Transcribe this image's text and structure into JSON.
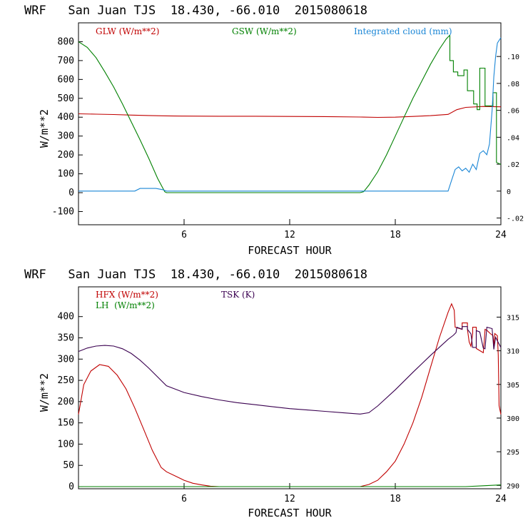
{
  "chart_data": [
    {
      "type": "line",
      "title": "WRF   San Juan TJS  18.430, -66.010  2015080618",
      "xlabel": "FORECAST HOUR",
      "ylabel": "W/m**2",
      "xlim": [
        0,
        24
      ],
      "ylim": [
        -170,
        900
      ],
      "y2lim": [
        -0.025,
        0.125
      ],
      "xticks": [
        "6",
        "12",
        "18",
        "24"
      ],
      "xtick_values": [
        6,
        12,
        18,
        24
      ],
      "yticks": [
        "-100",
        "0",
        "100",
        "200",
        "300",
        "400",
        "500",
        "600",
        "700",
        "800"
      ],
      "ytick_values": [
        -100,
        0,
        100,
        200,
        300,
        400,
        500,
        600,
        700,
        800
      ],
      "y2ticks": [
        "-.02",
        "0",
        ".02",
        ".04",
        ".06",
        ".08",
        ".10"
      ],
      "y2tick_values": [
        -0.02,
        0,
        0.02,
        0.04,
        0.06,
        0.08,
        0.1
      ],
      "series": [
        {
          "name": "GLW (W/m**2)",
          "color": "#c00000",
          "axis": "left",
          "x": [
            0,
            1,
            2,
            3,
            4,
            5,
            6,
            8,
            10,
            12,
            14,
            16,
            17,
            18,
            19,
            20,
            21,
            21.5,
            22,
            23,
            24
          ],
          "y": [
            418,
            416,
            414,
            411,
            409,
            407,
            406,
            405,
            405,
            404,
            403,
            401,
            399,
            400,
            404,
            408,
            415,
            440,
            452,
            457,
            455
          ]
        },
        {
          "name": "GSW (W/m**2)",
          "color": "#008000",
          "axis": "left",
          "x": [
            0,
            0.5,
            1,
            1.5,
            2,
            2.5,
            3,
            3.5,
            4,
            4.5,
            4.9,
            5,
            6,
            8,
            10,
            12,
            14,
            16,
            16.2,
            16.5,
            17,
            17.5,
            18,
            18.5,
            19,
            19.5,
            20,
            20.5,
            20.9,
            21.1,
            21.1,
            21.3,
            21.3,
            21.55,
            21.55,
            21.9,
            21.9,
            22.1,
            22.1,
            22.45,
            22.45,
            22.65,
            22.65,
            22.8,
            22.8,
            23.1,
            23.1,
            23.55,
            23.55,
            23.75,
            23.75,
            24
          ],
          "y": [
            800,
            770,
            715,
            640,
            560,
            470,
            375,
            280,
            180,
            75,
            5,
            0,
            0,
            0,
            0,
            0,
            0,
            0,
            5,
            40,
            110,
            200,
            300,
            400,
            500,
            590,
            680,
            760,
            815,
            835,
            700,
            700,
            640,
            640,
            620,
            620,
            650,
            650,
            540,
            540,
            470,
            470,
            440,
            440,
            660,
            660,
            460,
            460,
            530,
            530,
            160,
            150
          ]
        },
        {
          "name": "Integrated cloud (mm)",
          "color": "#1a86d6",
          "axis": "right",
          "x": [
            0,
            3.2,
            3.5,
            4,
            4.4,
            4.8,
            5,
            8,
            12,
            16,
            18,
            20,
            21,
            21.2,
            21.4,
            21.6,
            21.8,
            22,
            22.2,
            22.4,
            22.6,
            22.8,
            23,
            23.2,
            23.35,
            23.5,
            23.6,
            23.7,
            23.8,
            24
          ],
          "y": [
            0,
            0,
            0.002,
            0.002,
            0.002,
            0.001,
            0,
            0,
            0,
            0,
            0,
            0,
            0,
            0.008,
            0.016,
            0.018,
            0.015,
            0.017,
            0.014,
            0.02,
            0.016,
            0.028,
            0.03,
            0.027,
            0.035,
            0.06,
            0.085,
            0.1,
            0.11,
            0.114
          ]
        }
      ]
    },
    {
      "type": "line",
      "title": "WRF   San Juan TJS  18.430, -66.010  2015080618",
      "xlabel": "FORECAST HOUR",
      "ylabel": "W/m**2",
      "xlim": [
        0,
        24
      ],
      "ylim": [
        -5,
        470
      ],
      "y2lim": [
        289.5,
        319.5
      ],
      "xticks": [
        "6",
        "12",
        "18",
        "24"
      ],
      "xtick_values": [
        6,
        12,
        18,
        24
      ],
      "yticks": [
        "0",
        "50",
        "100",
        "150",
        "200",
        "250",
        "300",
        "350",
        "400"
      ],
      "ytick_values": [
        0,
        50,
        100,
        150,
        200,
        250,
        300,
        350,
        400
      ],
      "y2ticks": [
        "290",
        "295",
        "300",
        "305",
        "310",
        "315"
      ],
      "y2tick_values": [
        290,
        295,
        300,
        305,
        310,
        315
      ],
      "series": [
        {
          "name": "HFX (W/m**2)",
          "color": "#c00000",
          "axis": "left",
          "x": [
            0,
            0.3,
            0.7,
            1.2,
            1.7,
            2.2,
            2.7,
            3.2,
            3.7,
            4.2,
            4.7,
            5,
            5.5,
            6,
            6.5,
            7,
            7.5,
            8,
            10,
            12,
            14,
            16,
            16.5,
            17,
            17.5,
            18,
            18.5,
            19,
            19.5,
            20,
            20.5,
            21,
            21.2,
            21.35,
            21.4,
            21.8,
            21.8,
            22.1,
            22.1,
            22.2,
            22.3,
            22.4,
            22.4,
            22.6,
            22.6,
            22.8,
            23,
            23.05,
            23.1,
            23.2,
            23.4,
            23.55,
            23.6,
            23.65,
            23.8,
            23.85,
            23.9,
            24
          ],
          "y": [
            170,
            240,
            272,
            287,
            283,
            262,
            230,
            185,
            135,
            85,
            45,
            35,
            25,
            15,
            8,
            4,
            1,
            0,
            0,
            0,
            0,
            0,
            5,
            15,
            35,
            60,
            100,
            150,
            210,
            280,
            350,
            410,
            430,
            415,
            375,
            370,
            385,
            385,
            370,
            340,
            330,
            360,
            375,
            375,
            325,
            320,
            315,
            340,
            370,
            368,
            360,
            355,
            330,
            360,
            355,
            310,
            190,
            170
          ]
        },
        {
          "name": "LH  (W/m**2)",
          "color": "#008000",
          "axis": "left",
          "x": [
            0,
            4,
            8,
            12,
            16,
            20,
            22,
            23,
            24
          ],
          "y": [
            0,
            0,
            0,
            0,
            0,
            0,
            0,
            2,
            4
          ]
        },
        {
          "name": "TSK (K)",
          "color": "#3a0050",
          "axis": "right",
          "x": [
            0,
            0.5,
            1,
            1.5,
            2,
            2.5,
            3,
            3.5,
            4,
            4.5,
            5,
            6,
            7,
            8,
            9,
            10,
            11,
            12,
            13,
            14,
            15,
            16,
            16.5,
            17,
            18,
            19,
            20,
            21,
            21.3,
            21.45,
            21.5,
            21.8,
            21.8,
            22.1,
            22.1,
            22.3,
            22.4,
            22.6,
            22.6,
            22.8,
            23,
            23.1,
            23.2,
            23.5,
            23.6,
            23.7,
            23.9,
            24
          ],
          "y": [
            309.9,
            310.4,
            310.7,
            310.8,
            310.7,
            310.3,
            309.6,
            308.6,
            307.4,
            306.1,
            304.8,
            303.8,
            303.2,
            302.7,
            302.3,
            302,
            301.7,
            301.4,
            301.2,
            301,
            300.8,
            300.6,
            300.8,
            301.8,
            304.2,
            306.8,
            309.3,
            311.7,
            312.3,
            312.7,
            313.5,
            313.2,
            313.6,
            313.6,
            313.2,
            312.5,
            310.5,
            310.5,
            313,
            312.8,
            310.4,
            310.3,
            313.5,
            313.3,
            310.2,
            312,
            311,
            310.5
          ]
        }
      ]
    }
  ]
}
